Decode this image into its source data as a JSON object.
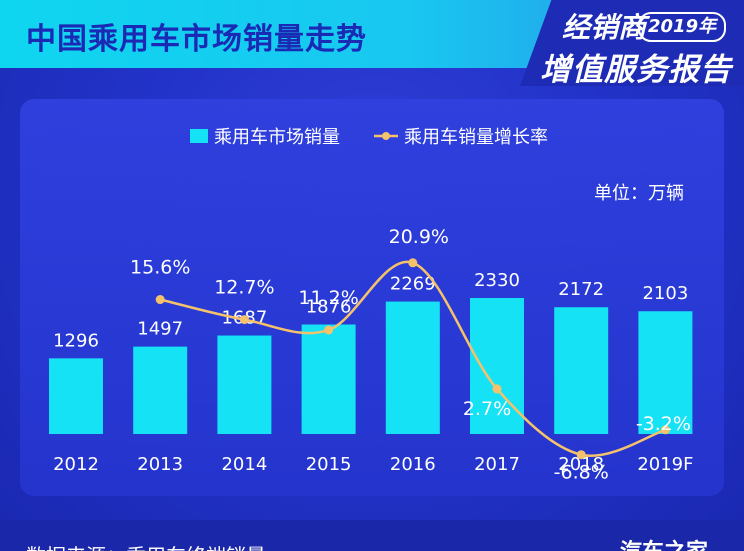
{
  "header": {
    "title": "中国乘用车市场销量走势"
  },
  "brand": {
    "line1": "经销商",
    "year": "2019年",
    "line2": "增值服务报告"
  },
  "unit_label": "单位：万辆",
  "footer": {
    "source": "数据来源：乘用车终端销量",
    "logo": "汽车之家"
  },
  "colors": {
    "bar": "#16e2f5",
    "line": "#f5c26b",
    "text": "#ffffff"
  },
  "chart_data": {
    "type": "bar",
    "categories": [
      "2012",
      "2013",
      "2014",
      "2015",
      "2016",
      "2017",
      "2018",
      "2019F"
    ],
    "series": [
      {
        "name": "乘用车市场销量",
        "type": "bar",
        "values": [
          1296,
          1497,
          1687,
          1876,
          2269,
          2330,
          2172,
          2103
        ],
        "labels": [
          "1296",
          "1497",
          "1687",
          "1876",
          "2269",
          "2330",
          "2172",
          "2103"
        ]
      },
      {
        "name": "乘用车销量增长率",
        "type": "line",
        "unit": "%",
        "values": [
          null,
          15.6,
          12.7,
          11.2,
          20.9,
          2.7,
          -6.8,
          -3.2
        ],
        "labels": [
          "",
          "15.6%",
          "12.7%",
          "11.2%",
          "20.9%",
          "2.7%",
          "-6.8%",
          "-3.2%"
        ]
      }
    ],
    "legend": "top-center",
    "grid": false
  }
}
